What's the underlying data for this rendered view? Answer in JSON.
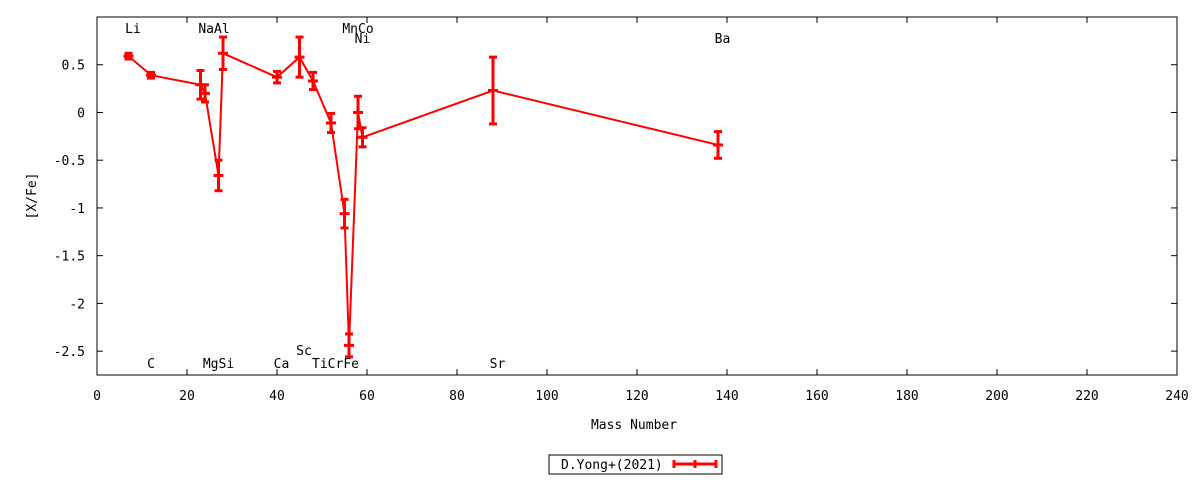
{
  "chart_data": {
    "type": "line",
    "xlabel": "Mass Number",
    "ylabel": "[X/Fe]",
    "xlim": [
      0,
      240
    ],
    "ylim": [
      -2.75,
      1.0
    ],
    "xticks": [
      0,
      20,
      40,
      60,
      80,
      100,
      120,
      140,
      160,
      180,
      200,
      220,
      240
    ],
    "yticks": [
      {
        "value": 0.5,
        "label": "0.5"
      },
      {
        "value": 0,
        "label": "0"
      },
      {
        "value": -0.5,
        "label": "-0.5"
      },
      {
        "value": -1,
        "label": "-1"
      },
      {
        "value": -1.5,
        "label": "-1.5"
      },
      {
        "value": -2,
        "label": "-2"
      },
      {
        "value": -2.5,
        "label": "-2.5"
      }
    ],
    "grid": false,
    "legend_position": "bottom-center",
    "series": [
      {
        "name": "D.Yong+(2021)",
        "color": "#ff0000",
        "points": [
          {
            "element": "Li",
            "x": 7,
            "y": 0.59,
            "err": 0.03
          },
          {
            "element": "C",
            "x": 12,
            "y": 0.39,
            "err": 0.03
          },
          {
            "element": "Na",
            "x": 23,
            "y": 0.29,
            "err": 0.15
          },
          {
            "element": "Mg",
            "x": 24,
            "y": 0.2,
            "err": 0.09
          },
          {
            "element": "Al",
            "x": 27,
            "y": -0.66,
            "err": 0.16
          },
          {
            "element": "Si",
            "x": 28,
            "y": 0.62,
            "err": 0.17
          },
          {
            "element": "Ca",
            "x": 40,
            "y": 0.37,
            "err": 0.06
          },
          {
            "element": "Sc",
            "x": 45,
            "y": 0.58,
            "err": 0.21
          },
          {
            "element": "Ti",
            "x": 48,
            "y": 0.33,
            "err": 0.09
          },
          {
            "element": "Cr",
            "x": 52,
            "y": -0.11,
            "err": 0.1
          },
          {
            "element": "Mn",
            "x": 55,
            "y": -1.06,
            "err": 0.15
          },
          {
            "element": "Fe",
            "x": 56,
            "y": -2.44,
            "err": 0.12
          },
          {
            "element": "Co",
            "x": 58,
            "y": 0.0,
            "err": 0.17
          },
          {
            "element": "Ni",
            "x": 59,
            "y": -0.26,
            "err": 0.1
          },
          {
            "element": "Sr",
            "x": 88,
            "y": 0.23,
            "err": 0.35
          },
          {
            "element": "Ba",
            "x": 138,
            "y": -0.34,
            "err": 0.14
          }
        ]
      }
    ],
    "labels_top": [
      {
        "text": "Li",
        "x": 8,
        "row": 0
      },
      {
        "text": "NaAl",
        "x": 26,
        "row": 0
      },
      {
        "text": "MnCo",
        "x": 58,
        "row": 0
      },
      {
        "text": "Ni",
        "x": 59,
        "row": 1
      },
      {
        "text": "Ba",
        "x": 139,
        "row": 1
      }
    ],
    "labels_bottom": [
      {
        "text": "Sc",
        "x": 46,
        "row": 0
      },
      {
        "text": "C",
        "x": 12,
        "row": 1
      },
      {
        "text": "MgSi",
        "x": 27,
        "row": 1
      },
      {
        "text": "Ca",
        "x": 41,
        "row": 1
      },
      {
        "text": "TiCrFe",
        "x": 53,
        "row": 1
      },
      {
        "text": "Sr",
        "x": 89,
        "row": 1
      }
    ]
  }
}
